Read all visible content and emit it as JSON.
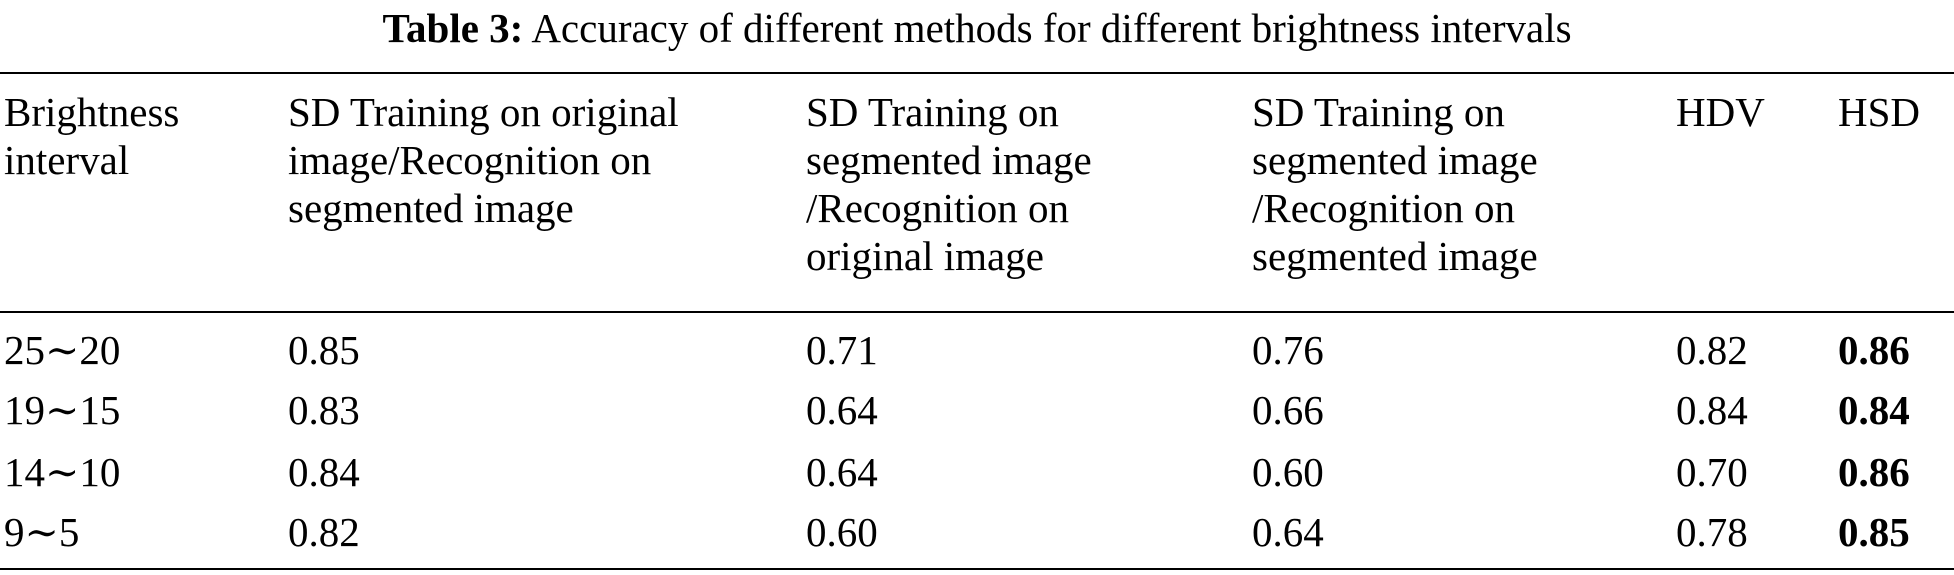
{
  "caption": {
    "label": "Table 3:",
    "text": "Accuracy of different methods for different brightness intervals"
  },
  "table": {
    "headers": [
      [
        "Brightness",
        "interval"
      ],
      [
        "SD Training on original",
        "image/Recognition on",
        "segmented image"
      ],
      [
        "SD Training on",
        "segmented image",
        "/Recognition on",
        "original image"
      ],
      [
        "SD Training on",
        "segmented image",
        "/Recognition on",
        "segmented image"
      ],
      [
        "HDV"
      ],
      [
        "HSD"
      ]
    ],
    "rows": [
      [
        "25∼20",
        "0.85",
        "0.71",
        "0.76",
        "0.82",
        "0.86"
      ],
      [
        "19∼15",
        "0.83",
        "0.64",
        "0.66",
        "0.84",
        "0.84"
      ],
      [
        "14∼10",
        "0.84",
        "0.64",
        "0.60",
        "0.70",
        "0.86"
      ],
      [
        "9∼5",
        "0.82",
        "0.60",
        "0.64",
        "0.78",
        "0.85"
      ]
    ],
    "bold_column": "HSD"
  }
}
